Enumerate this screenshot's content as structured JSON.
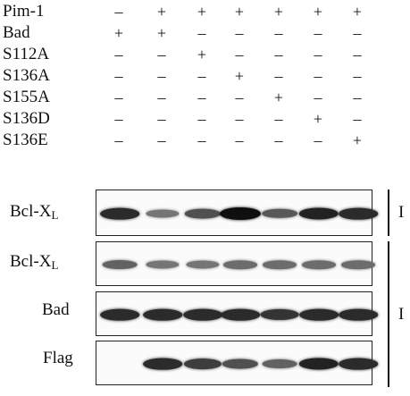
{
  "rows": [
    {
      "label": "Pim-1",
      "signs": [
        "–",
        "+",
        "+",
        "+",
        "+",
        "+",
        "+"
      ]
    },
    {
      "label": "Bad",
      "signs": [
        "+",
        "+",
        "–",
        "–",
        "–",
        "–",
        "–"
      ]
    },
    {
      "label": "S112A",
      "signs": [
        "–",
        "–",
        "+",
        "–",
        "–",
        "–",
        "–"
      ]
    },
    {
      "label": "S136A",
      "signs": [
        "–",
        "–",
        "–",
        "+",
        "–",
        "–",
        "–"
      ]
    },
    {
      "label": "S155A",
      "signs": [
        "–",
        "–",
        "–",
        "–",
        "+",
        "–",
        "–"
      ]
    },
    {
      "label": "S136D",
      "signs": [
        "–",
        "–",
        "–",
        "–",
        "–",
        "+",
        "–"
      ]
    },
    {
      "label": "S136E",
      "signs": [
        "–",
        "–",
        "–",
        "–",
        "–",
        "–",
        "+"
      ]
    }
  ],
  "panels": [
    {
      "label": "Bcl-X",
      "sub": "L",
      "intensities": [
        0.85,
        0.45,
        0.65,
        1.0,
        0.6,
        0.9,
        0.85
      ]
    },
    {
      "label": "Bcl-X",
      "sub": "L",
      "intensities": [
        0.55,
        0.45,
        0.45,
        0.5,
        0.5,
        0.5,
        0.5
      ]
    },
    {
      "label": "Bad",
      "sub": "",
      "intensities": [
        0.85,
        0.85,
        0.85,
        0.85,
        0.8,
        0.85,
        0.85
      ]
    },
    {
      "label": "Flag",
      "sub": "",
      "intensities": [
        0.0,
        0.85,
        0.75,
        0.65,
        0.55,
        0.9,
        0.85
      ]
    }
  ],
  "side_marks": [
    "I",
    "I"
  ]
}
